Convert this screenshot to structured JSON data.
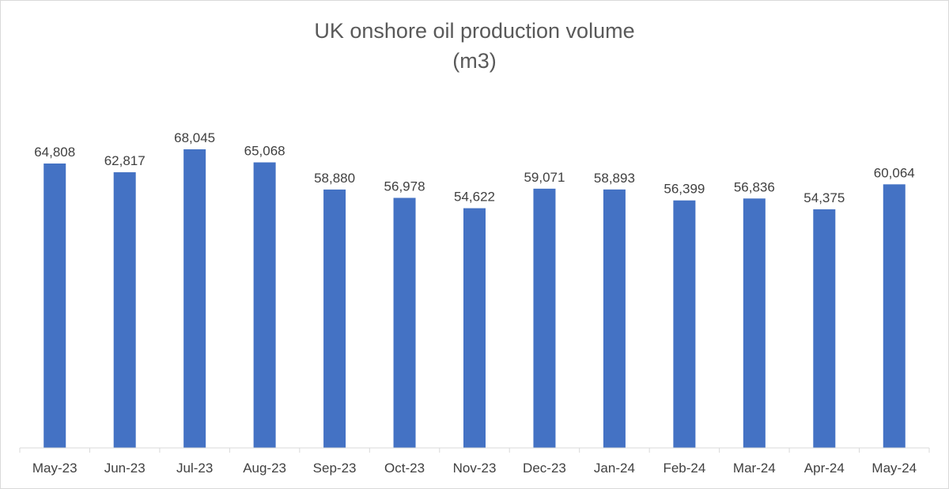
{
  "chart_data": {
    "type": "bar",
    "title_line1": "UK onshore oil production volume",
    "title_line2": "(m3)",
    "categories": [
      "May-23",
      "Jun-23",
      "Jul-23",
      "Aug-23",
      "Sep-23",
      "Oct-23",
      "Nov-23",
      "Dec-23",
      "Jan-24",
      "Feb-24",
      "Mar-24",
      "Apr-24",
      "May-24"
    ],
    "values": [
      64808,
      62817,
      68045,
      65068,
      58880,
      56978,
      54622,
      59071,
      58893,
      56399,
      56836,
      54375,
      60064
    ],
    "data_labels": [
      "64,808",
      "62,817",
      "68,045",
      "65,068",
      "58,880",
      "56,978",
      "54,622",
      "59,071",
      "58,893",
      "56,399",
      "56,836",
      "54,375",
      "60,064"
    ],
    "ylim": [
      0,
      80000
    ],
    "grid": false,
    "legend": "none",
    "bar_color": "#4472c4",
    "axis_color": "#d9d9d9",
    "text_color": "#404040",
    "title_color": "#595959"
  }
}
